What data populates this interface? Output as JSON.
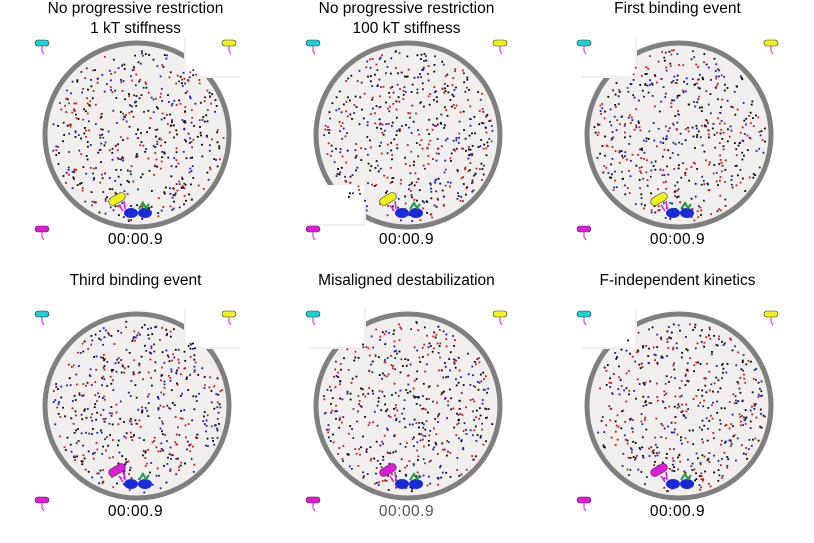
{
  "panels": [
    {
      "title": "No progressive restriction\n1 kT stiffness",
      "timer": "00:00.9",
      "particle_seed": 11,
      "faded_timer": false
    },
    {
      "title": "No progressive restriction\n100 kT stiffness",
      "timer": "00:00.9",
      "particle_seed": 23,
      "faded_timer": false
    },
    {
      "title": "First binding event",
      "timer": "00:00.9",
      "particle_seed": 37,
      "faded_timer": false
    },
    {
      "title": "Third binding event",
      "timer": "00:00.9",
      "particle_seed": 41,
      "faded_timer": false
    },
    {
      "title": "Misaligned destabilization",
      "timer": "00:00.9",
      "particle_seed": 53,
      "faded_timer": true
    },
    {
      "title": "F-independent kinetics",
      "timer": "00:00.9",
      "particle_seed": 67,
      "faded_timer": false
    }
  ],
  "colors": {
    "background": "#ffffff",
    "chamber_fill": "#f0efed",
    "chamber_wall": "#7f7f7f",
    "particle_colors": [
      "#000000",
      "#1a1aa8",
      "#c01a1a"
    ],
    "legend_cyan": "#19d3d8",
    "legend_yellow": "#f2f21a",
    "legend_magenta": "#e01ad8",
    "motor_blue": "#1a2ad8",
    "motor_green": "#1a9a3a",
    "motor_magenta": "#d81ad8"
  },
  "legend_icons": [
    "cyan-protein-icon",
    "yellow-protein-icon",
    "magenta-protein-icon"
  ]
}
